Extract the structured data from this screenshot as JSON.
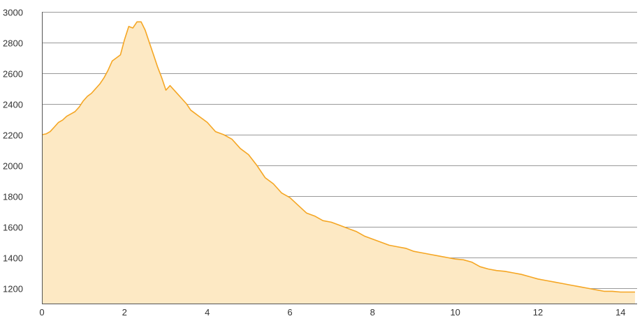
{
  "chart_data": {
    "type": "area",
    "title": "",
    "xlabel": "",
    "ylabel": "",
    "xlim": [
      0,
      14.4
    ],
    "ylim": [
      1100,
      3000
    ],
    "x_ticks": [
      0,
      2,
      4,
      6,
      8,
      10,
      12,
      14
    ],
    "y_ticks": [
      1200,
      1400,
      1600,
      1800,
      2000,
      2200,
      2400,
      2600,
      2800,
      3000
    ],
    "grid": "horizontal",
    "legend": "none",
    "colors": {
      "line": "#F5A623",
      "fill": "#FDE9C4",
      "grid": "#999999",
      "axis": "#555555",
      "tick_text": "#333333"
    },
    "series": [
      {
        "x": [
          0,
          0.1,
          0.2,
          0.3,
          0.4,
          0.5,
          0.6,
          0.7,
          0.8,
          0.9,
          1.0,
          1.1,
          1.2,
          1.3,
          1.4,
          1.5,
          1.6,
          1.7,
          1.8,
          1.9,
          2.0,
          2.1,
          2.2,
          2.3,
          2.4,
          2.5,
          2.6,
          2.7,
          2.8,
          2.9,
          3.0,
          3.1,
          3.2,
          3.3,
          3.4,
          3.5,
          3.6,
          3.7,
          3.8,
          3.9,
          4.0,
          4.2,
          4.4,
          4.6,
          4.8,
          5.0,
          5.2,
          5.4,
          5.6,
          5.8,
          6.0,
          6.2,
          6.4,
          6.6,
          6.8,
          7.0,
          7.2,
          7.4,
          7.6,
          7.8,
          8.0,
          8.2,
          8.4,
          8.6,
          8.8,
          9.0,
          9.2,
          9.4,
          9.6,
          9.8,
          10.0,
          10.2,
          10.4,
          10.6,
          10.8,
          11.0,
          11.2,
          11.4,
          11.6,
          11.8,
          12.0,
          12.2,
          12.4,
          12.6,
          12.8,
          13.0,
          13.2,
          13.4,
          13.6,
          13.8,
          14.0,
          14.2,
          14.35
        ],
        "y": [
          2200,
          2205,
          2220,
          2250,
          2280,
          2295,
          2320,
          2335,
          2350,
          2380,
          2420,
          2450,
          2470,
          2500,
          2530,
          2570,
          2620,
          2680,
          2700,
          2720,
          2820,
          2905,
          2895,
          2935,
          2935,
          2880,
          2800,
          2720,
          2640,
          2570,
          2490,
          2520,
          2490,
          2460,
          2430,
          2400,
          2360,
          2340,
          2320,
          2300,
          2280,
          2220,
          2200,
          2170,
          2110,
          2070,
          2000,
          1920,
          1880,
          1820,
          1790,
          1740,
          1690,
          1670,
          1640,
          1630,
          1610,
          1590,
          1570,
          1540,
          1520,
          1500,
          1480,
          1470,
          1460,
          1440,
          1430,
          1420,
          1410,
          1400,
          1390,
          1385,
          1370,
          1340,
          1325,
          1315,
          1310,
          1300,
          1290,
          1275,
          1260,
          1250,
          1240,
          1230,
          1220,
          1210,
          1200,
          1190,
          1180,
          1180,
          1175,
          1175,
          1175
        ]
      }
    ]
  }
}
